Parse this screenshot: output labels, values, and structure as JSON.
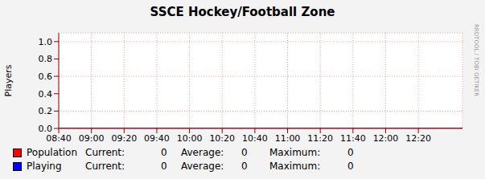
{
  "chart_data": {
    "type": "line",
    "title": "SSCE Hockey/Football Zone",
    "y_label": "Players",
    "annotation": "RRDTOOL / TOBI OETIKER",
    "x": [
      520,
      540,
      560,
      580,
      600,
      620,
      640,
      660,
      680,
      700,
      720,
      740,
      760,
      767
    ],
    "xlim": [
      520,
      767
    ],
    "xticks": [
      {
        "value": 520,
        "label": "08:40"
      },
      {
        "value": 540,
        "label": "09:00"
      },
      {
        "value": 560,
        "label": "09:20"
      },
      {
        "value": 580,
        "label": "09:40"
      },
      {
        "value": 600,
        "label": "10:00"
      },
      {
        "value": 620,
        "label": "10:20"
      },
      {
        "value": 640,
        "label": "10:40"
      },
      {
        "value": 660,
        "label": "11:00"
      },
      {
        "value": 680,
        "label": "11:20"
      },
      {
        "value": 700,
        "label": "11:40"
      },
      {
        "value": 720,
        "label": "12:00"
      },
      {
        "value": 740,
        "label": "12:20"
      }
    ],
    "ylim": [
      0,
      1.1
    ],
    "yticks": [
      {
        "value": 0,
        "label": "0.0"
      },
      {
        "value": 0.2,
        "label": "0.2"
      },
      {
        "value": 0.4,
        "label": "0.4"
      },
      {
        "value": 0.6,
        "label": "0.6"
      },
      {
        "value": 0.8,
        "label": "0.8"
      },
      {
        "value": 1,
        "label": "1.0"
      }
    ],
    "grid": true,
    "stat_labels": [
      "Current:",
      "Average:",
      "Maximum:"
    ],
    "series": [
      {
        "name": "Population",
        "color": "#ff0000",
        "values": [
          0,
          0,
          0,
          0,
          0,
          0,
          0,
          0,
          0,
          0,
          0,
          0,
          0,
          0
        ],
        "current": 0,
        "average": 0,
        "maximum": 0
      },
      {
        "name": "Playing",
        "color": "#0000ff",
        "values": [
          0,
          0,
          0,
          0,
          0,
          0,
          0,
          0,
          0,
          0,
          0,
          0,
          0,
          0
        ],
        "current": 0,
        "average": 0,
        "maximum": 0
      }
    ]
  }
}
